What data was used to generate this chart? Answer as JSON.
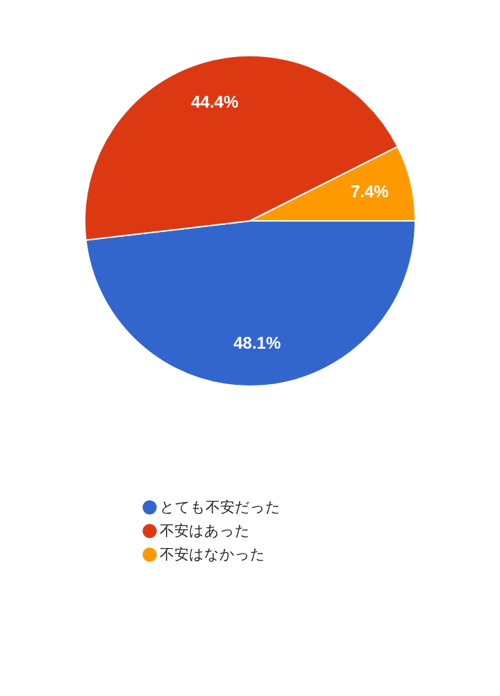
{
  "chart_data": {
    "type": "pie",
    "categories": [
      "とても不安だった",
      "不安はあった",
      "不安はなかった"
    ],
    "values": [
      48.1,
      44.4,
      7.4
    ],
    "colors": [
      "#3366cc",
      "#dc3912",
      "#ff9900"
    ],
    "value_labels": [
      "48.1%",
      "44.4%",
      "7.4%"
    ],
    "legend": "bottom"
  }
}
